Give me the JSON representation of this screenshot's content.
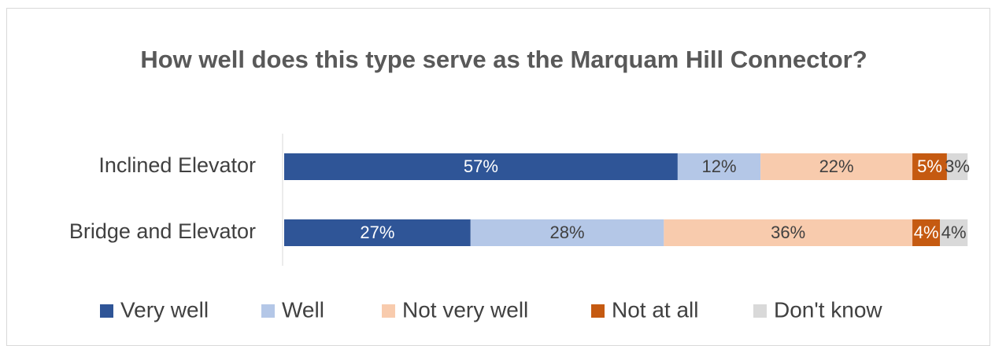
{
  "chart_data": {
    "type": "stacked_barh",
    "title": "How well does this type serve as the Marquam Hill Connector?",
    "categories": [
      "Inclined Elevator",
      "Bridge and Elevator"
    ],
    "xlim": [
      0,
      100
    ],
    "legend": "bottom",
    "series": [
      {
        "name": "Very well",
        "color": "#2f5597",
        "values": [
          57,
          27
        ],
        "value_labels": [
          "57%",
          "27%"
        ]
      },
      {
        "name": "Well",
        "color": "#b4c7e7",
        "values": [
          12,
          28
        ],
        "value_labels": [
          "12%",
          "28%"
        ]
      },
      {
        "name": "Not very well",
        "color": "#f8cbad",
        "values": [
          22,
          36
        ],
        "value_labels": [
          "22%",
          "36%"
        ]
      },
      {
        "name": "Not at all",
        "color": "#c55a11",
        "values": [
          5,
          4
        ],
        "value_labels": [
          "5%",
          "4%"
        ]
      },
      {
        "name": "Don't know",
        "color": "#d9d9d9",
        "values": [
          3,
          4
        ],
        "value_labels": [
          "3%",
          "4%"
        ]
      }
    ]
  }
}
